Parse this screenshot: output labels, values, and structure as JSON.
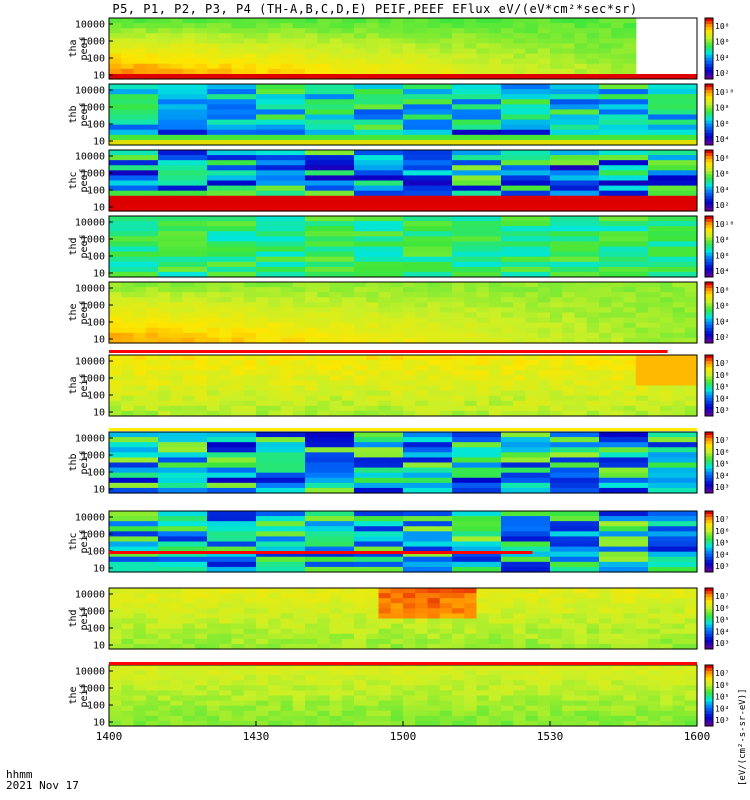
{
  "title": "P5, P1, P2, P3, P4 (TH-A,B,C,D,E) PEIF,PEEF EFlux eV/(eV*cm²*sec*sr)",
  "footer": {
    "line1": "hhmm",
    "line2": "2021 Nov 17"
  },
  "colorbar_label": "[eV/(cm²-s-sr-eV)]",
  "chart_data": [
    {
      "type": "heatmap",
      "probe": "tha",
      "ylabel": [
        "tha",
        "peef"
      ],
      "yticks": [
        "10000",
        "1000",
        "100",
        "10"
      ],
      "cbar_ticks": [
        "10⁸",
        "10⁶",
        "10⁴",
        "10²"
      ],
      "pattern": "smooth-warm",
      "bottom_strip": "#e00000",
      "blank_from": 0.895,
      "blank_to": 0.98
    },
    {
      "type": "heatmap",
      "probe": "thb",
      "ylabel": [
        "thb",
        "peef"
      ],
      "yticks": [
        "10000",
        "1000",
        "100",
        "10"
      ],
      "cbar_ticks": [
        "10¹⁰",
        "10⁸",
        "10⁶",
        "10⁴"
      ],
      "pattern": "blocky-cool",
      "bottom_strip": "#e0e000"
    },
    {
      "type": "heatmap",
      "probe": "thc",
      "ylabel": [
        "thc",
        "peef"
      ],
      "yticks": [
        "10000",
        "1000",
        "100",
        "10"
      ],
      "cbar_ticks": [
        "10⁸",
        "10⁶",
        "10⁴",
        "10²"
      ],
      "pattern": "blocky-dark",
      "bottom_strip": "#e00000"
    },
    {
      "type": "heatmap",
      "probe": "thd",
      "ylabel": [
        "thd",
        "peef"
      ],
      "yticks": [
        "10000",
        "1000",
        "100",
        "10"
      ],
      "cbar_ticks": [
        "10¹⁰",
        "10⁸",
        "10⁶",
        "10⁴"
      ],
      "pattern": "blocky-green"
    },
    {
      "type": "heatmap",
      "probe": "the",
      "ylabel": [
        "the",
        "peef"
      ],
      "yticks": [
        "10000",
        "1000",
        "100",
        "10"
      ],
      "cbar_ticks": [
        "10⁸",
        "10⁶",
        "10⁴",
        "10²"
      ],
      "pattern": "smooth-warm2"
    },
    {
      "type": "heatmap",
      "probe": "tha",
      "ylabel": [
        "tha",
        "peif"
      ],
      "yticks": [
        "10000",
        "1000",
        "100",
        "10"
      ],
      "cbar_ticks": [
        "10⁷",
        "10⁶",
        "10⁵",
        "10⁴",
        "10³"
      ],
      "pattern": "smooth-yellow"
    },
    {
      "type": "heatmap",
      "probe": "thb",
      "ylabel": [
        "thb",
        "peif"
      ],
      "yticks": [
        "10000",
        "1000",
        "100",
        "10"
      ],
      "cbar_ticks": [
        "10⁷",
        "10⁶",
        "10⁵",
        "10⁴",
        "10³"
      ],
      "pattern": "blocky-cool2"
    },
    {
      "type": "heatmap",
      "probe": "thc",
      "ylabel": [
        "thc",
        "peif"
      ],
      "yticks": [
        "10000",
        "1000",
        "100",
        "10"
      ],
      "cbar_ticks": [
        "10⁷",
        "10⁶",
        "10⁵",
        "10⁴",
        "10³"
      ],
      "pattern": "blocky-cool3"
    },
    {
      "type": "heatmap",
      "probe": "thd",
      "ylabel": [
        "thd",
        "peif"
      ],
      "yticks": [
        "10000",
        "1000",
        "100",
        "10"
      ],
      "cbar_ticks": [
        "10⁷",
        "10⁶",
        "10⁵",
        "10⁴",
        "10³"
      ],
      "pattern": "smooth-yellow2"
    },
    {
      "type": "heatmap",
      "probe": "the",
      "ylabel": [
        "the",
        "peif"
      ],
      "yticks": [
        "10000",
        "1000",
        "100",
        "10"
      ],
      "cbar_ticks": [
        "10⁷",
        "10⁶",
        "10⁵",
        "10⁴",
        "10³"
      ],
      "pattern": "smooth-green"
    }
  ],
  "x_axis": {
    "type": "time",
    "ticks": [
      "1400",
      "1430",
      "1500",
      "1530",
      "1600"
    ]
  }
}
